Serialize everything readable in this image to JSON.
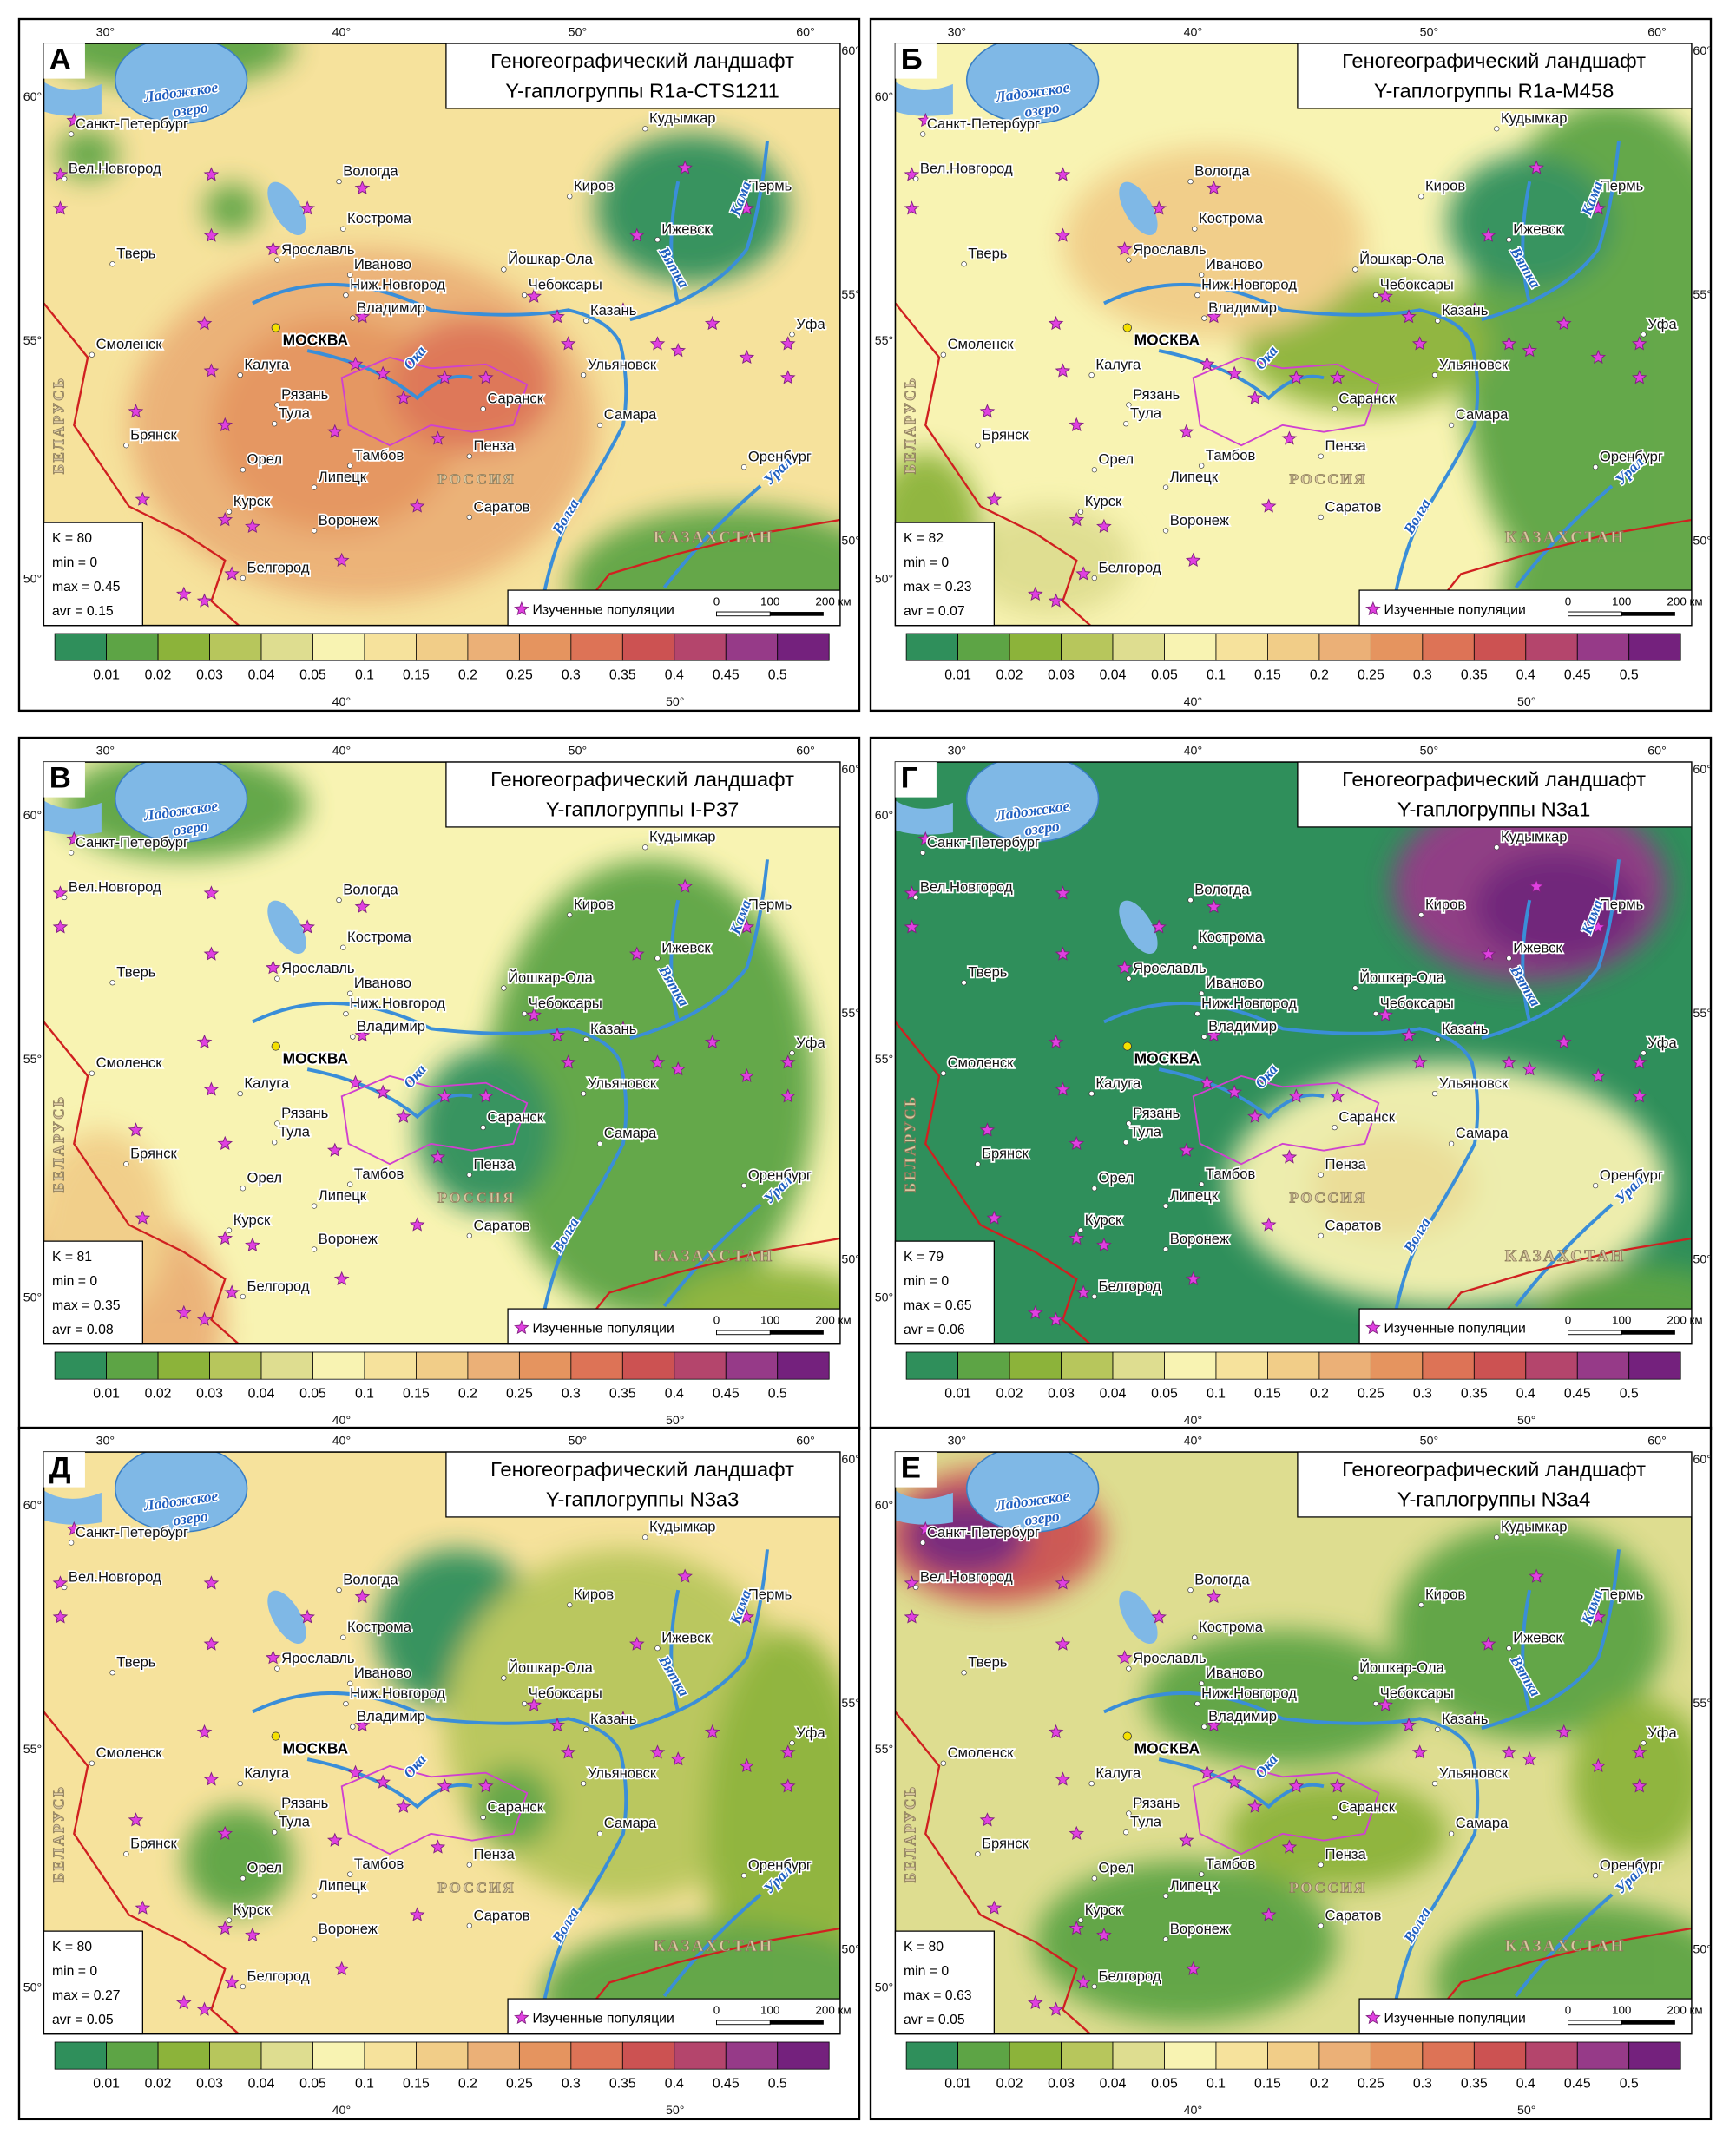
{
  "panels": [
    {
      "letter": "А",
      "title": [
        "Геногеографический ландшафт",
        "Y-гаплогруппы R1a-CTS1211"
      ],
      "stats": [
        "K = 80",
        "min = 0",
        "max = 0.45",
        "avr = 0.15"
      ]
    },
    {
      "letter": "Б",
      "title": [
        "Геногеографический ландшафт",
        "Y-гаплогруппы R1a-M458"
      ],
      "stats": [
        "K = 82",
        "min = 0",
        "max = 0.23",
        "avr = 0.07"
      ]
    },
    {
      "letter": "В",
      "title": [
        "Геногеографический ландшафт",
        "Y-гаплогруппы I-P37"
      ],
      "stats": [
        "K = 81",
        "min = 0",
        "max = 0.35",
        "avr = 0.08"
      ]
    },
    {
      "letter": "Г",
      "title": [
        "Геногеографический ландшафт",
        "Y-гаплогруппы N3a1"
      ],
      "stats": [
        "K = 79",
        "min = 0",
        "max = 0.65",
        "avr = 0.06"
      ]
    },
    {
      "letter": "Д",
      "title": [
        "Геногеографический ландшафт",
        "Y-гаплогруппы N3a3"
      ],
      "stats": [
        "K = 80",
        "min = 0",
        "max = 0.27",
        "avr = 0.05"
      ]
    },
    {
      "letter": "Е",
      "title": [
        "Геногеографический ландшафт",
        "Y-гаплогруппы N3a4"
      ],
      "stats": [
        "K = 80",
        "min = 0",
        "max = 0.63",
        "avr = 0.05"
      ]
    }
  ],
  "map": {
    "cities": [
      "Санкт-Петербург",
      "Вел.Новгород",
      "Вологда",
      "Кострома",
      "Ярославль",
      "Тверь",
      "Иваново",
      "Ниж.Новгород",
      "Владимир",
      "Смоленск",
      "Калуга",
      "Рязань",
      "Тула",
      "Брянск",
      "Орел",
      "Тамбов",
      "Липецк",
      "Курск",
      "Воронеж",
      "Белгород",
      "Кудымкар",
      "Киров",
      "Пермь",
      "Ижевск",
      "Йошкар-Ола",
      "Чебоксары",
      "Казань",
      "Уфа",
      "Ульяновск",
      "Саранск",
      "Самара",
      "Пенза",
      "Оренбург",
      "Саратов"
    ],
    "capital": "МОСКВА",
    "countries": [
      "РОССИЯ",
      "КАЗАХСТАН",
      "БЕЛАРУСЬ"
    ],
    "rivers": [
      "Волга",
      "Ока",
      "Вятка",
      "Кама",
      "Урал"
    ],
    "lake": [
      "Ладожское",
      "озеро"
    ],
    "top_degrees": [
      "30°",
      "40°",
      "50°",
      "60°"
    ],
    "bottom_degrees": [
      "40°",
      "50°"
    ],
    "left_degrees": [
      "60°",
      "55°",
      "50°"
    ],
    "right_degrees": [
      "60°",
      "55°",
      "50°"
    ]
  },
  "legend": {
    "label": "Изученные популяции",
    "scale_bar": [
      "0",
      "100",
      "200 км"
    ],
    "colors": [
      "#2f8f5b",
      "#5da445",
      "#8cb33a",
      "#b7c65c",
      "#dedd90",
      "#f8f3b2",
      "#f6e29c",
      "#f1cd88",
      "#ebb077",
      "#e5945f",
      "#dd7356",
      "#cc5252",
      "#b4456c",
      "#963a88",
      "#74217d"
    ],
    "values": [
      "0.01",
      "0.02",
      "0.03",
      "0.04",
      "0.05",
      "0.1",
      "0.15",
      "0.2",
      "0.25",
      "0.3",
      "0.35",
      "0.4",
      "0.45",
      "0.5"
    ]
  }
}
